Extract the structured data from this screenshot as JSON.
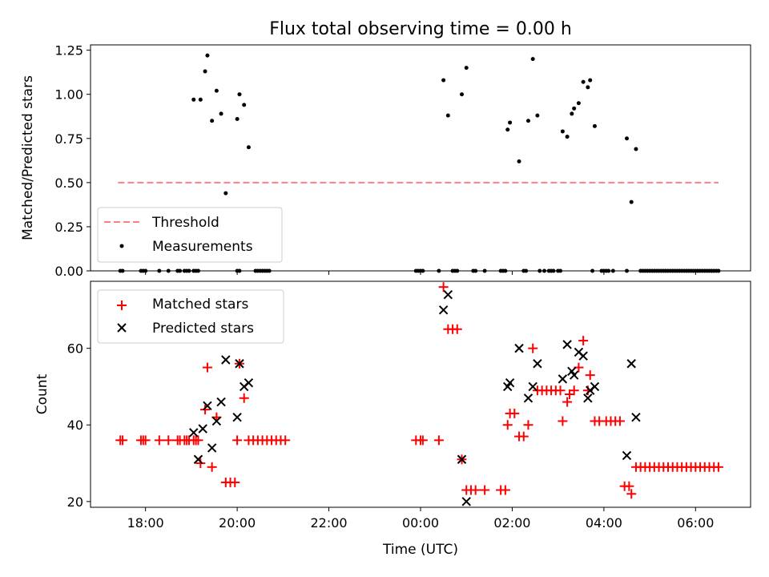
{
  "colors": {
    "threshold": "#ff8080",
    "measurements": "#000000",
    "matched": "#ff0000",
    "predicted": "#000000"
  },
  "chart_data": [
    {
      "type": "scatter",
      "title": "Flux total observing time = 0.00 h",
      "xlabel": "",
      "ylabel": "Matched/Predicted stars",
      "x_unit": "hours since 00:00 UTC",
      "xlim": [
        -7.2,
        7.2
      ],
      "ylim": [
        0,
        1.28
      ],
      "xticks": [
        -6,
        -4,
        -2,
        0,
        2,
        4,
        6
      ],
      "xtick_labels": [
        "",
        "",
        "",
        "",
        "",
        "",
        ""
      ],
      "yticks": [
        0,
        0.25,
        0.5,
        0.75,
        1.0,
        1.25
      ],
      "ytick_labels": [
        "0.00",
        "0.25",
        "0.50",
        "0.75",
        "1.00",
        "1.25"
      ],
      "legend": {
        "position": "bottom-left",
        "entries": [
          "Threshold",
          "Measurements"
        ]
      },
      "threshold": {
        "name": "Threshold",
        "y": 0.5,
        "x_range": [
          -6.6,
          6.5
        ],
        "style": "dashed"
      },
      "series": [
        {
          "name": "Measurements",
          "marker": "dot",
          "points": [
            [
              -6.55,
              0
            ],
            [
              -6.5,
              0
            ],
            [
              -6.1,
              0
            ],
            [
              -6.05,
              0
            ],
            [
              -6.0,
              0
            ],
            [
              -5.7,
              0
            ],
            [
              -5.5,
              0
            ],
            [
              -5.3,
              0
            ],
            [
              -5.25,
              0
            ],
            [
              -5.15,
              0
            ],
            [
              -5.1,
              0
            ],
            [
              -5.05,
              0
            ],
            [
              -4.95,
              0
            ],
            [
              -4.9,
              0
            ],
            [
              -4.85,
              0
            ],
            [
              -4.0,
              0
            ],
            [
              -3.95,
              0
            ],
            [
              -3.6,
              0
            ],
            [
              -3.55,
              0
            ],
            [
              -3.5,
              0
            ],
            [
              -3.45,
              0
            ],
            [
              -3.4,
              0
            ],
            [
              -3.35,
              0
            ],
            [
              -3.3,
              0
            ],
            [
              -4.95,
              0.97
            ],
            [
              -4.8,
              0.97
            ],
            [
              -4.7,
              1.13
            ],
            [
              -4.65,
              1.22
            ],
            [
              -4.55,
              0.85
            ],
            [
              -4.45,
              1.02
            ],
            [
              -4.35,
              0.89
            ],
            [
              -4.25,
              0.44
            ],
            [
              -4.0,
              0.86
            ],
            [
              -3.95,
              1.0
            ],
            [
              -3.85,
              0.94
            ],
            [
              -3.75,
              0.7
            ],
            [
              -0.1,
              0
            ],
            [
              -0.05,
              0
            ],
            [
              0.0,
              0
            ],
            [
              0.05,
              0
            ],
            [
              0.4,
              0
            ],
            [
              0.7,
              0
            ],
            [
              0.75,
              0
            ],
            [
              0.8,
              0
            ],
            [
              1.15,
              0
            ],
            [
              1.2,
              0
            ],
            [
              1.4,
              0
            ],
            [
              1.75,
              0
            ],
            [
              1.8,
              0
            ],
            [
              1.85,
              0
            ],
            [
              2.25,
              0
            ],
            [
              2.3,
              0
            ],
            [
              2.6,
              0
            ],
            [
              2.7,
              0
            ],
            [
              2.8,
              0
            ],
            [
              2.85,
              0
            ],
            [
              2.9,
              0
            ],
            [
              3.0,
              0
            ],
            [
              3.05,
              0
            ],
            [
              3.75,
              0
            ],
            [
              3.95,
              0
            ],
            [
              4.0,
              0
            ],
            [
              4.05,
              0
            ],
            [
              4.1,
              0
            ],
            [
              4.2,
              0
            ],
            [
              4.5,
              0
            ],
            [
              0.5,
              1.08
            ],
            [
              0.6,
              0.88
            ],
            [
              0.9,
              1.0
            ],
            [
              1.0,
              1.15
            ],
            [
              1.9,
              0.8
            ],
            [
              1.95,
              0.84
            ],
            [
              2.15,
              0.62
            ],
            [
              2.35,
              0.85
            ],
            [
              2.45,
              1.2
            ],
            [
              2.55,
              0.88
            ],
            [
              3.1,
              0.79
            ],
            [
              3.2,
              0.76
            ],
            [
              3.3,
              0.89
            ],
            [
              3.35,
              0.92
            ],
            [
              3.45,
              0.95
            ],
            [
              3.55,
              1.07
            ],
            [
              3.65,
              1.04
            ],
            [
              3.7,
              1.08
            ],
            [
              3.8,
              0.82
            ],
            [
              4.5,
              0.75
            ],
            [
              4.6,
              0.39
            ],
            [
              4.7,
              0.69
            ],
            [
              4.8,
              0
            ],
            [
              4.85,
              0
            ],
            [
              4.9,
              0
            ],
            [
              4.95,
              0
            ],
            [
              5.0,
              0
            ],
            [
              5.05,
              0
            ],
            [
              5.1,
              0
            ],
            [
              5.15,
              0
            ],
            [
              5.2,
              0
            ],
            [
              5.25,
              0
            ],
            [
              5.3,
              0
            ],
            [
              5.35,
              0
            ],
            [
              5.4,
              0
            ],
            [
              5.45,
              0
            ],
            [
              5.5,
              0
            ],
            [
              5.55,
              0
            ],
            [
              5.6,
              0
            ],
            [
              5.65,
              0
            ],
            [
              5.7,
              0
            ],
            [
              5.75,
              0
            ],
            [
              5.8,
              0
            ],
            [
              5.85,
              0
            ],
            [
              5.9,
              0
            ],
            [
              5.95,
              0
            ],
            [
              6.0,
              0
            ],
            [
              6.05,
              0
            ],
            [
              6.1,
              0
            ],
            [
              6.15,
              0
            ],
            [
              6.2,
              0
            ],
            [
              6.25,
              0
            ],
            [
              6.3,
              0
            ],
            [
              6.35,
              0
            ],
            [
              6.4,
              0
            ],
            [
              6.45,
              0
            ],
            [
              6.5,
              0
            ]
          ]
        }
      ]
    },
    {
      "type": "scatter",
      "title": "",
      "xlabel": "Time (UTC)",
      "ylabel": "Count",
      "x_unit": "hours since 00:00 UTC",
      "xlim": [
        -7.2,
        7.2
      ],
      "ylim": [
        18.5,
        77.5
      ],
      "xticks": [
        -6,
        -4,
        -2,
        0,
        2,
        4,
        6
      ],
      "xtick_labels": [
        "18:00",
        "20:00",
        "22:00",
        "00:00",
        "02:00",
        "04:00",
        "06:00"
      ],
      "yticks": [
        20,
        40,
        60
      ],
      "ytick_labels": [
        "20",
        "40",
        "60"
      ],
      "legend": {
        "position": "top-left",
        "entries": [
          "Matched stars",
          "Predicted stars"
        ]
      },
      "series": [
        {
          "name": "Matched stars",
          "marker": "plus",
          "points": [
            [
              -6.55,
              36
            ],
            [
              -6.5,
              36
            ],
            [
              -6.1,
              36
            ],
            [
              -6.05,
              36
            ],
            [
              -6.0,
              36
            ],
            [
              -5.7,
              36
            ],
            [
              -5.5,
              36
            ],
            [
              -5.3,
              36
            ],
            [
              -5.25,
              36
            ],
            [
              -5.15,
              36
            ],
            [
              -5.1,
              36
            ],
            [
              -5.05,
              36
            ],
            [
              -4.95,
              36
            ],
            [
              -4.9,
              36
            ],
            [
              -4.85,
              36
            ],
            [
              -4.8,
              30
            ],
            [
              -4.7,
              44
            ],
            [
              -4.65,
              55
            ],
            [
              -4.55,
              29
            ],
            [
              -4.45,
              42
            ],
            [
              -4.25,
              25
            ],
            [
              -4.15,
              25
            ],
            [
              -4.05,
              25
            ],
            [
              -4.0,
              36
            ],
            [
              -3.95,
              56
            ],
            [
              -3.85,
              47
            ],
            [
              -3.75,
              36
            ],
            [
              -3.65,
              36
            ],
            [
              -3.55,
              36
            ],
            [
              -3.45,
              36
            ],
            [
              -3.35,
              36
            ],
            [
              -3.25,
              36
            ],
            [
              -3.15,
              36
            ],
            [
              -3.05,
              36
            ],
            [
              -2.95,
              36
            ],
            [
              -0.1,
              36
            ],
            [
              0.0,
              36
            ],
            [
              0.05,
              36
            ],
            [
              0.4,
              36
            ],
            [
              0.5,
              76
            ],
            [
              0.6,
              65
            ],
            [
              0.7,
              65
            ],
            [
              0.8,
              65
            ],
            [
              0.9,
              31
            ],
            [
              1.0,
              23
            ],
            [
              1.1,
              23
            ],
            [
              1.2,
              23
            ],
            [
              1.4,
              23
            ],
            [
              1.75,
              23
            ],
            [
              1.85,
              23
            ],
            [
              1.9,
              40
            ],
            [
              1.95,
              43
            ],
            [
              2.05,
              43
            ],
            [
              2.15,
              37
            ],
            [
              2.25,
              37
            ],
            [
              2.35,
              40
            ],
            [
              2.45,
              60
            ],
            [
              2.55,
              49
            ],
            [
              2.65,
              49
            ],
            [
              2.75,
              49
            ],
            [
              2.85,
              49
            ],
            [
              2.95,
              49
            ],
            [
              3.05,
              49
            ],
            [
              3.1,
              41
            ],
            [
              3.2,
              46
            ],
            [
              3.25,
              48
            ],
            [
              3.35,
              49
            ],
            [
              3.45,
              55
            ],
            [
              3.55,
              62
            ],
            [
              3.65,
              49
            ],
            [
              3.7,
              53
            ],
            [
              3.8,
              41
            ],
            [
              3.9,
              41
            ],
            [
              4.05,
              41
            ],
            [
              4.15,
              41
            ],
            [
              4.25,
              41
            ],
            [
              4.35,
              41
            ],
            [
              4.45,
              24
            ],
            [
              4.55,
              24
            ],
            [
              4.6,
              22
            ],
            [
              4.7,
              29
            ],
            [
              4.8,
              29
            ],
            [
              4.9,
              29
            ],
            [
              5.0,
              29
            ],
            [
              5.1,
              29
            ],
            [
              5.2,
              29
            ],
            [
              5.3,
              29
            ],
            [
              5.4,
              29
            ],
            [
              5.5,
              29
            ],
            [
              5.6,
              29
            ],
            [
              5.7,
              29
            ],
            [
              5.8,
              29
            ],
            [
              5.9,
              29
            ],
            [
              6.0,
              29
            ],
            [
              6.1,
              29
            ],
            [
              6.2,
              29
            ],
            [
              6.3,
              29
            ],
            [
              6.4,
              29
            ],
            [
              6.5,
              29
            ]
          ]
        },
        {
          "name": "Predicted stars",
          "marker": "x",
          "points": [
            [
              -4.95,
              38
            ],
            [
              -4.85,
              31
            ],
            [
              -4.75,
              39
            ],
            [
              -4.65,
              45
            ],
            [
              -4.55,
              34
            ],
            [
              -4.45,
              41
            ],
            [
              -4.35,
              46
            ],
            [
              -4.25,
              57
            ],
            [
              -4.0,
              42
            ],
            [
              -3.95,
              56
            ],
            [
              -3.85,
              50
            ],
            [
              -3.75,
              51
            ],
            [
              0.5,
              70
            ],
            [
              0.6,
              74
            ],
            [
              0.9,
              31
            ],
            [
              1.0,
              20
            ],
            [
              1.9,
              50
            ],
            [
              1.95,
              51
            ],
            [
              2.15,
              60
            ],
            [
              2.35,
              47
            ],
            [
              2.45,
              50
            ],
            [
              2.55,
              56
            ],
            [
              3.1,
              52
            ],
            [
              3.2,
              61
            ],
            [
              3.3,
              54
            ],
            [
              3.35,
              53
            ],
            [
              3.45,
              59
            ],
            [
              3.55,
              58
            ],
            [
              3.65,
              47
            ],
            [
              3.7,
              49
            ],
            [
              3.8,
              50
            ],
            [
              4.5,
              32
            ],
            [
              4.6,
              56
            ],
            [
              4.7,
              42
            ]
          ]
        }
      ]
    }
  ]
}
